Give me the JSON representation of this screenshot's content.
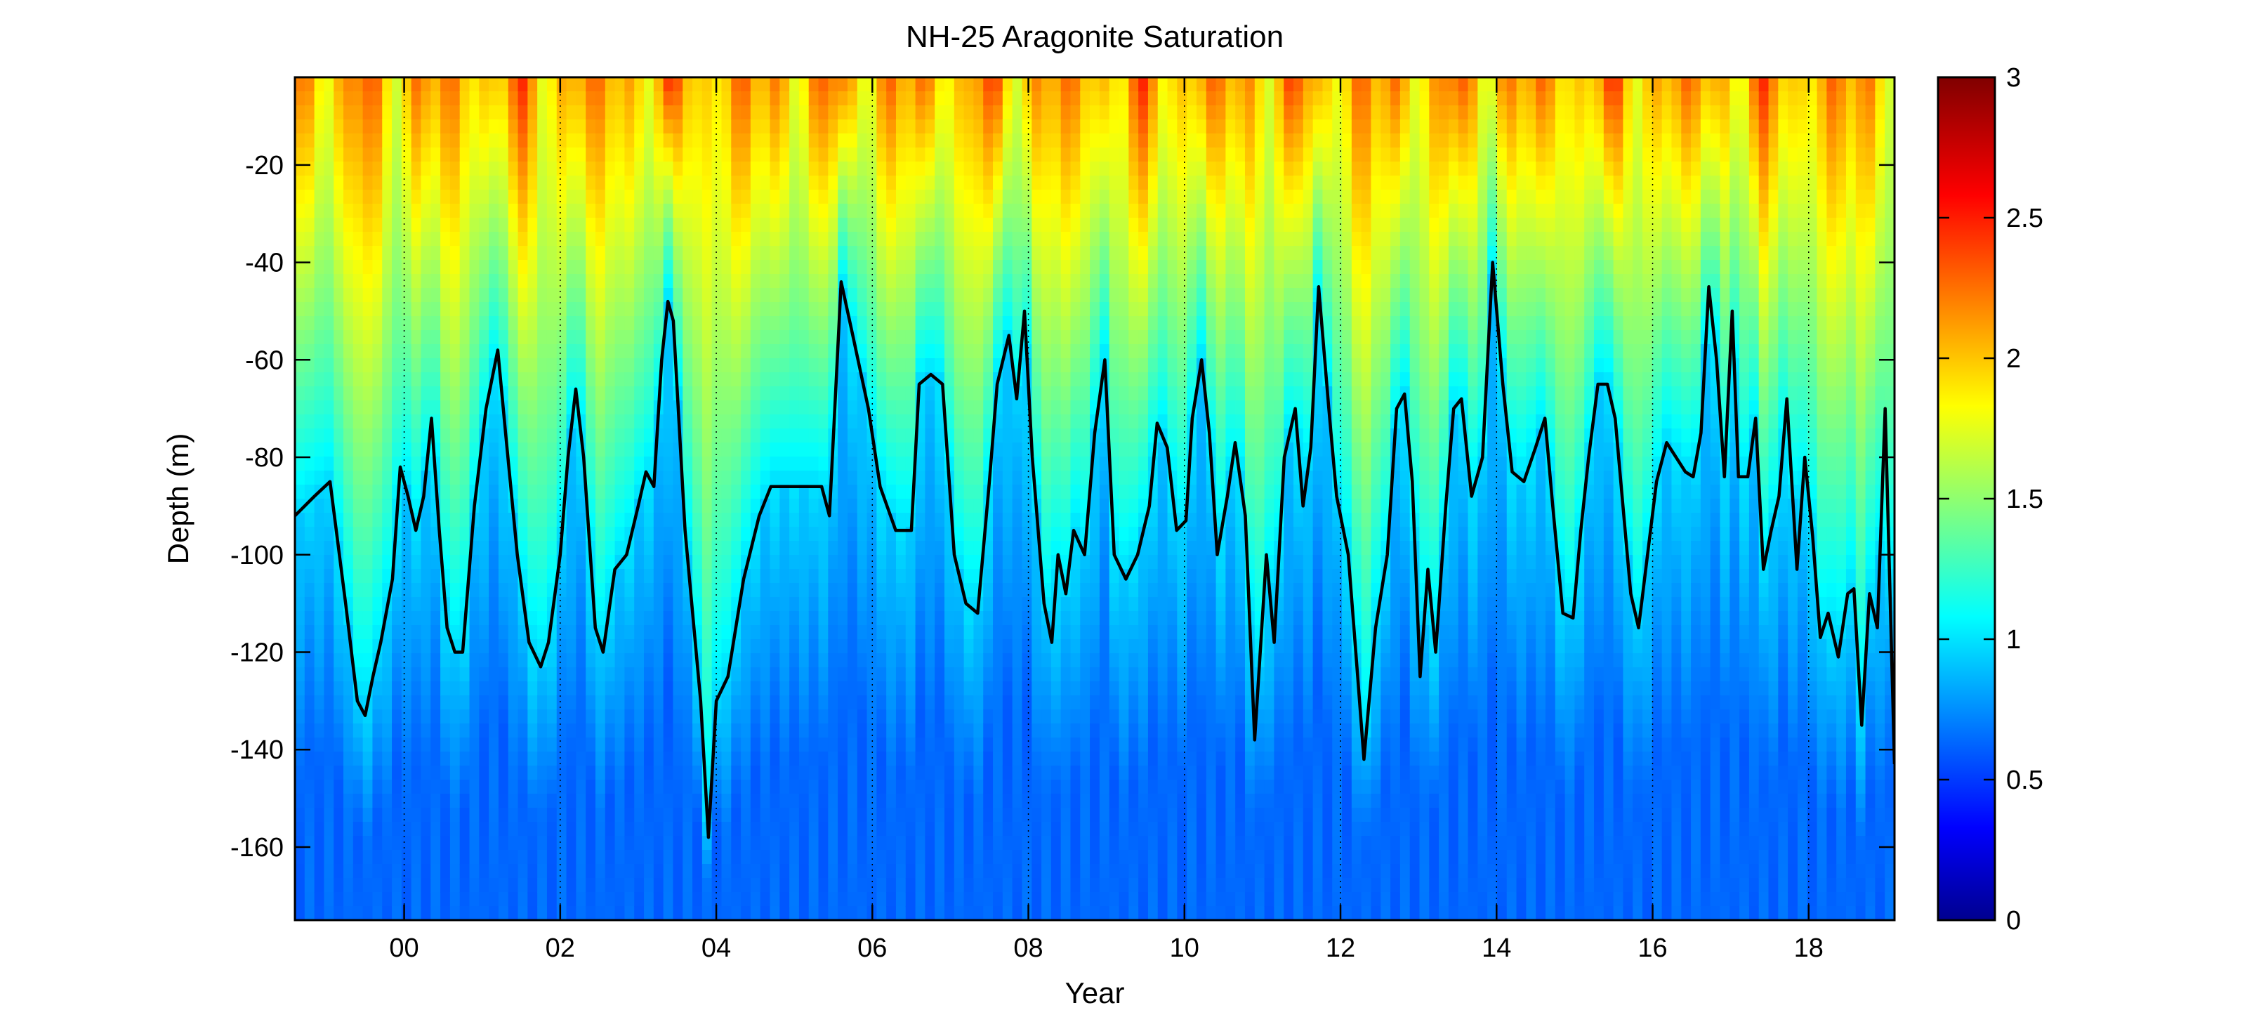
{
  "chart_data": {
    "type": "heatmap",
    "title": "NH-25 Aragonite Saturation",
    "xlabel": "Year",
    "ylabel": "Depth (m)",
    "x_ticks": [
      "00",
      "02",
      "04",
      "06",
      "08",
      "10",
      "12",
      "14",
      "16",
      "18"
    ],
    "x_tick_years": [
      2000,
      2002,
      2004,
      2006,
      2008,
      2010,
      2012,
      2014,
      2016,
      2018
    ],
    "y_ticks": [
      -20,
      -40,
      -60,
      -80,
      -100,
      -120,
      -140,
      -160
    ],
    "xlim": [
      1998.6,
      2019.1
    ],
    "ylim": [
      -175,
      -2
    ],
    "colorbar": {
      "colormap": "jet",
      "range": [
        0,
        3
      ],
      "ticks": [
        "0",
        "0.5",
        "1",
        "1.5",
        "2",
        "2.5",
        "3"
      ]
    },
    "vertical_grid": "dotted at year ticks",
    "contour": {
      "level": 1.0,
      "color": "#000000",
      "points": [
        [
          1998.6,
          -92
        ],
        [
          1998.85,
          -88
        ],
        [
          1999.05,
          -85
        ],
        [
          1999.25,
          -110
        ],
        [
          1999.4,
          -130
        ],
        [
          1999.5,
          -133
        ],
        [
          1999.6,
          -125
        ],
        [
          1999.7,
          -118
        ],
        [
          1999.85,
          -105
        ],
        [
          1999.95,
          -82
        ],
        [
          2000.05,
          -88
        ],
        [
          2000.15,
          -95
        ],
        [
          2000.25,
          -88
        ],
        [
          2000.35,
          -72
        ],
        [
          2000.45,
          -95
        ],
        [
          2000.55,
          -115
        ],
        [
          2000.65,
          -120
        ],
        [
          2000.75,
          -120
        ],
        [
          2000.9,
          -90
        ],
        [
          2001.05,
          -70
        ],
        [
          2001.2,
          -58
        ],
        [
          2001.3,
          -75
        ],
        [
          2001.45,
          -100
        ],
        [
          2001.6,
          -118
        ],
        [
          2001.75,
          -123
        ],
        [
          2001.85,
          -118
        ],
        [
          2002.0,
          -100
        ],
        [
          2002.1,
          -80
        ],
        [
          2002.2,
          -66
        ],
        [
          2002.3,
          -80
        ],
        [
          2002.45,
          -115
        ],
        [
          2002.55,
          -120
        ],
        [
          2002.7,
          -103
        ],
        [
          2002.85,
          -100
        ],
        [
          2003.0,
          -90
        ],
        [
          2003.1,
          -83
        ],
        [
          2003.2,
          -86
        ],
        [
          2003.3,
          -60
        ],
        [
          2003.38,
          -48
        ],
        [
          2003.45,
          -52
        ],
        [
          2003.6,
          -95
        ],
        [
          2003.8,
          -130
        ],
        [
          2003.9,
          -158
        ],
        [
          2004.0,
          -130
        ],
        [
          2004.15,
          -125
        ],
        [
          2004.35,
          -105
        ],
        [
          2004.55,
          -92
        ],
        [
          2004.7,
          -86
        ],
        [
          2005.0,
          -86
        ],
        [
          2005.35,
          -86
        ],
        [
          2005.45,
          -92
        ],
        [
          2005.6,
          -44
        ],
        [
          2005.75,
          -55
        ],
        [
          2005.95,
          -70
        ],
        [
          2006.1,
          -86
        ],
        [
          2006.3,
          -95
        ],
        [
          2006.5,
          -95
        ],
        [
          2006.6,
          -65
        ],
        [
          2006.75,
          -63
        ],
        [
          2006.9,
          -65
        ],
        [
          2007.05,
          -100
        ],
        [
          2007.2,
          -110
        ],
        [
          2007.35,
          -112
        ],
        [
          2007.5,
          -85
        ],
        [
          2007.6,
          -65
        ],
        [
          2007.75,
          -55
        ],
        [
          2007.85,
          -68
        ],
        [
          2007.95,
          -50
        ],
        [
          2008.05,
          -80
        ],
        [
          2008.2,
          -110
        ],
        [
          2008.3,
          -118
        ],
        [
          2008.38,
          -100
        ],
        [
          2008.48,
          -108
        ],
        [
          2008.58,
          -95
        ],
        [
          2008.72,
          -100
        ],
        [
          2008.85,
          -75
        ],
        [
          2008.98,
          -60
        ],
        [
          2009.1,
          -100
        ],
        [
          2009.25,
          -105
        ],
        [
          2009.4,
          -100
        ],
        [
          2009.55,
          -90
        ],
        [
          2009.65,
          -73
        ],
        [
          2009.78,
          -78
        ],
        [
          2009.9,
          -95
        ],
        [
          2010.02,
          -93
        ],
        [
          2010.1,
          -72
        ],
        [
          2010.22,
          -60
        ],
        [
          2010.32,
          -75
        ],
        [
          2010.42,
          -100
        ],
        [
          2010.55,
          -88
        ],
        [
          2010.65,
          -77
        ],
        [
          2010.78,
          -92
        ],
        [
          2010.9,
          -138
        ],
        [
          2011.05,
          -100
        ],
        [
          2011.15,
          -118
        ],
        [
          2011.28,
          -80
        ],
        [
          2011.42,
          -70
        ],
        [
          2011.52,
          -90
        ],
        [
          2011.62,
          -78
        ],
        [
          2011.72,
          -45
        ],
        [
          2011.85,
          -70
        ],
        [
          2011.95,
          -88
        ],
        [
          2012.1,
          -100
        ],
        [
          2012.22,
          -125
        ],
        [
          2012.3,
          -142
        ],
        [
          2012.45,
          -115
        ],
        [
          2012.6,
          -100
        ],
        [
          2012.72,
          -70
        ],
        [
          2012.82,
          -67
        ],
        [
          2012.92,
          -85
        ],
        [
          2013.02,
          -125
        ],
        [
          2013.12,
          -103
        ],
        [
          2013.22,
          -120
        ],
        [
          2013.35,
          -90
        ],
        [
          2013.45,
          -70
        ],
        [
          2013.55,
          -68
        ],
        [
          2013.68,
          -88
        ],
        [
          2013.82,
          -80
        ],
        [
          2013.95,
          -40
        ],
        [
          2014.08,
          -65
        ],
        [
          2014.2,
          -83
        ],
        [
          2014.35,
          -85
        ],
        [
          2014.5,
          -78
        ],
        [
          2014.62,
          -72
        ],
        [
          2014.72,
          -90
        ],
        [
          2014.85,
          -112
        ],
        [
          2014.98,
          -113
        ],
        [
          2015.08,
          -95
        ],
        [
          2015.18,
          -80
        ],
        [
          2015.3,
          -65
        ],
        [
          2015.42,
          -65
        ],
        [
          2015.52,
          -72
        ],
        [
          2015.62,
          -90
        ],
        [
          2015.72,
          -108
        ],
        [
          2015.82,
          -115
        ],
        [
          2015.95,
          -98
        ],
        [
          2016.05,
          -85
        ],
        [
          2016.18,
          -77
        ],
        [
          2016.3,
          -80
        ],
        [
          2016.42,
          -83
        ],
        [
          2016.52,
          -84
        ],
        [
          2016.62,
          -75
        ],
        [
          2016.72,
          -45
        ],
        [
          2016.82,
          -60
        ],
        [
          2016.92,
          -84
        ],
        [
          2017.02,
          -50
        ],
        [
          2017.1,
          -84
        ],
        [
          2017.22,
          -84
        ],
        [
          2017.32,
          -72
        ],
        [
          2017.42,
          -103
        ],
        [
          2017.52,
          -95
        ],
        [
          2017.62,
          -88
        ],
        [
          2017.72,
          -68
        ],
        [
          2017.85,
          -103
        ],
        [
          2017.95,
          -80
        ],
        [
          2018.05,
          -96
        ],
        [
          2018.15,
          -117
        ],
        [
          2018.25,
          -112
        ],
        [
          2018.38,
          -121
        ],
        [
          2018.5,
          -108
        ],
        [
          2018.58,
          -107
        ],
        [
          2018.68,
          -135
        ],
        [
          2018.78,
          -108
        ],
        [
          2018.88,
          -115
        ],
        [
          2018.98,
          -70
        ],
        [
          2019.1,
          -143
        ]
      ]
    }
  }
}
